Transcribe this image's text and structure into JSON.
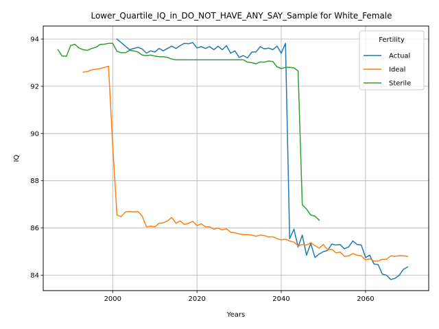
{
  "chart_data": {
    "type": "line",
    "title": "Lower_Quartile_IQ_in_DO_NOT_HAVE_ANY_SAY_Sample for White_Female",
    "xlabel": "Years",
    "ylabel": "IQ",
    "xlim": [
      1983.5,
      2075
    ],
    "ylim": [
      83.35,
      94.55
    ],
    "xticks": [
      2000,
      2020,
      2040,
      2060
    ],
    "yticks": [
      84,
      86,
      88,
      90,
      92,
      94
    ],
    "grid": true,
    "legend": {
      "title": "Fertility",
      "position": "top-right"
    },
    "series": [
      {
        "name": "Actual",
        "color": "#1f77b4",
        "points": [
          [
            2001,
            94.0
          ],
          [
            2002,
            93.85
          ],
          [
            2003,
            93.7
          ],
          [
            2004,
            93.55
          ],
          [
            2005,
            93.6
          ],
          [
            2006,
            93.65
          ],
          [
            2007,
            93.58
          ],
          [
            2008,
            93.4
          ],
          [
            2009,
            93.5
          ],
          [
            2010,
            93.45
          ],
          [
            2011,
            93.6
          ],
          [
            2012,
            93.5
          ],
          [
            2013,
            93.6
          ],
          [
            2014,
            93.7
          ],
          [
            2015,
            93.6
          ],
          [
            2016,
            93.72
          ],
          [
            2017,
            93.82
          ],
          [
            2018,
            93.8
          ],
          [
            2019,
            93.85
          ],
          [
            2020,
            93.62
          ],
          [
            2021,
            93.68
          ],
          [
            2022,
            93.6
          ],
          [
            2023,
            93.68
          ],
          [
            2024,
            93.55
          ],
          [
            2025,
            93.7
          ],
          [
            2026,
            93.55
          ],
          [
            2027,
            93.72
          ],
          [
            2028,
            93.4
          ],
          [
            2029,
            93.5
          ],
          [
            2030,
            93.22
          ],
          [
            2031,
            93.3
          ],
          [
            2032,
            93.2
          ],
          [
            2033,
            93.45
          ],
          [
            2034,
            93.45
          ],
          [
            2035,
            93.68
          ],
          [
            2036,
            93.58
          ],
          [
            2037,
            93.62
          ],
          [
            2038,
            93.55
          ],
          [
            2039,
            93.7
          ],
          [
            2040,
            93.4
          ],
          [
            2041,
            93.82
          ],
          [
            2042,
            85.55
          ],
          [
            2043,
            85.95
          ],
          [
            2044,
            85.2
          ],
          [
            2045,
            85.7
          ],
          [
            2046,
            84.85
          ],
          [
            2047,
            85.35
          ],
          [
            2048,
            84.75
          ],
          [
            2049,
            84.9
          ],
          [
            2050,
            85.0
          ],
          [
            2051,
            85.05
          ],
          [
            2052,
            85.32
          ],
          [
            2053,
            85.28
          ],
          [
            2054,
            85.3
          ],
          [
            2055,
            85.12
          ],
          [
            2056,
            85.2
          ],
          [
            2057,
            85.45
          ],
          [
            2058,
            85.3
          ],
          [
            2059,
            85.28
          ],
          [
            2060,
            84.75
          ],
          [
            2061,
            84.85
          ],
          [
            2062,
            84.48
          ],
          [
            2063,
            84.45
          ],
          [
            2064,
            84.05
          ],
          [
            2065,
            84.0
          ],
          [
            2066,
            83.82
          ],
          [
            2067,
            83.87
          ],
          [
            2068,
            84.0
          ],
          [
            2069,
            84.25
          ],
          [
            2070,
            84.35
          ]
        ]
      },
      {
        "name": "Ideal",
        "color": "#ff7f0e",
        "points": [
          [
            1993,
            92.6
          ],
          [
            1994,
            92.62
          ],
          [
            1995,
            92.7
          ],
          [
            1996,
            92.72
          ],
          [
            1997,
            92.75
          ],
          [
            1998,
            92.8
          ],
          [
            1999,
            92.85
          ],
          [
            2000,
            89.5
          ],
          [
            2001,
            86.55
          ],
          [
            2002,
            86.48
          ],
          [
            2003,
            86.68
          ],
          [
            2004,
            86.7
          ],
          [
            2005,
            86.68
          ],
          [
            2006,
            86.7
          ],
          [
            2007,
            86.5
          ],
          [
            2008,
            86.05
          ],
          [
            2009,
            86.08
          ],
          [
            2010,
            86.05
          ],
          [
            2011,
            86.2
          ],
          [
            2012,
            86.22
          ],
          [
            2013,
            86.3
          ],
          [
            2014,
            86.45
          ],
          [
            2015,
            86.2
          ],
          [
            2016,
            86.3
          ],
          [
            2017,
            86.15
          ],
          [
            2018,
            86.2
          ],
          [
            2019,
            86.28
          ],
          [
            2020,
            86.1
          ],
          [
            2021,
            86.18
          ],
          [
            2022,
            86.05
          ],
          [
            2023,
            86.05
          ],
          [
            2024,
            85.95
          ],
          [
            2025,
            86.0
          ],
          [
            2026,
            85.92
          ],
          [
            2027,
            85.97
          ],
          [
            2028,
            85.82
          ],
          [
            2029,
            85.8
          ],
          [
            2030,
            85.75
          ],
          [
            2031,
            85.72
          ],
          [
            2032,
            85.72
          ],
          [
            2033,
            85.7
          ],
          [
            2034,
            85.65
          ],
          [
            2035,
            85.7
          ],
          [
            2036,
            85.68
          ],
          [
            2037,
            85.62
          ],
          [
            2038,
            85.63
          ],
          [
            2039,
            85.55
          ],
          [
            2040,
            85.5
          ],
          [
            2041,
            85.53
          ],
          [
            2042,
            85.45
          ],
          [
            2043,
            85.4
          ],
          [
            2044,
            85.25
          ],
          [
            2045,
            85.3
          ],
          [
            2046,
            85.28
          ],
          [
            2047,
            85.38
          ],
          [
            2048,
            85.25
          ],
          [
            2049,
            85.15
          ],
          [
            2050,
            85.3
          ],
          [
            2051,
            85.08
          ],
          [
            2052,
            85.1
          ],
          [
            2053,
            84.95
          ],
          [
            2054,
            84.98
          ],
          [
            2055,
            84.8
          ],
          [
            2056,
            84.82
          ],
          [
            2057,
            84.92
          ],
          [
            2058,
            84.85
          ],
          [
            2059,
            84.82
          ],
          [
            2060,
            84.65
          ],
          [
            2061,
            84.7
          ],
          [
            2062,
            84.6
          ],
          [
            2063,
            84.6
          ],
          [
            2064,
            84.68
          ],
          [
            2065,
            84.68
          ],
          [
            2066,
            84.82
          ],
          [
            2067,
            84.8
          ],
          [
            2068,
            84.83
          ],
          [
            2069,
            84.82
          ],
          [
            2070,
            84.8
          ]
        ]
      },
      {
        "name": "Sterile",
        "color": "#2ca02c",
        "points": [
          [
            1987,
            93.55
          ],
          [
            1988,
            93.28
          ],
          [
            1989,
            93.27
          ],
          [
            1990,
            93.72
          ],
          [
            1991,
            93.78
          ],
          [
            1992,
            93.62
          ],
          [
            1993,
            93.55
          ],
          [
            1994,
            93.52
          ],
          [
            1995,
            93.6
          ],
          [
            1996,
            93.65
          ],
          [
            1997,
            93.77
          ],
          [
            1998,
            93.78
          ],
          [
            1999,
            93.82
          ],
          [
            2000,
            93.82
          ],
          [
            2001,
            93.48
          ],
          [
            2002,
            93.42
          ],
          [
            2003,
            93.42
          ],
          [
            2004,
            93.52
          ],
          [
            2005,
            93.5
          ],
          [
            2006,
            93.45
          ],
          [
            2007,
            93.32
          ],
          [
            2008,
            93.3
          ],
          [
            2009,
            93.32
          ],
          [
            2010,
            93.28
          ],
          [
            2011,
            93.25
          ],
          [
            2012,
            93.25
          ],
          [
            2013,
            93.22
          ],
          [
            2014,
            93.15
          ],
          [
            2015,
            93.12
          ],
          [
            2016,
            93.12
          ],
          [
            2017,
            93.12
          ],
          [
            2018,
            93.12
          ],
          [
            2019,
            93.12
          ],
          [
            2020,
            93.12
          ],
          [
            2021,
            93.12
          ],
          [
            2022,
            93.12
          ],
          [
            2023,
            93.12
          ],
          [
            2024,
            93.12
          ],
          [
            2025,
            93.12
          ],
          [
            2026,
            93.12
          ],
          [
            2027,
            93.12
          ],
          [
            2028,
            93.12
          ],
          [
            2029,
            93.12
          ],
          [
            2030,
            93.12
          ],
          [
            2031,
            93.12
          ],
          [
            2032,
            93.02
          ],
          [
            2033,
            93.0
          ],
          [
            2034,
            92.95
          ],
          [
            2035,
            93.03
          ],
          [
            2036,
            93.02
          ],
          [
            2037,
            93.07
          ],
          [
            2038,
            93.05
          ],
          [
            2039,
            92.82
          ],
          [
            2040,
            92.75
          ],
          [
            2041,
            92.8
          ],
          [
            2042,
            92.8
          ],
          [
            2043,
            92.78
          ],
          [
            2044,
            92.65
          ],
          [
            2045,
            86.98
          ],
          [
            2046,
            86.8
          ],
          [
            2047,
            86.55
          ],
          [
            2048,
            86.5
          ],
          [
            2049,
            86.33
          ]
        ]
      }
    ]
  }
}
